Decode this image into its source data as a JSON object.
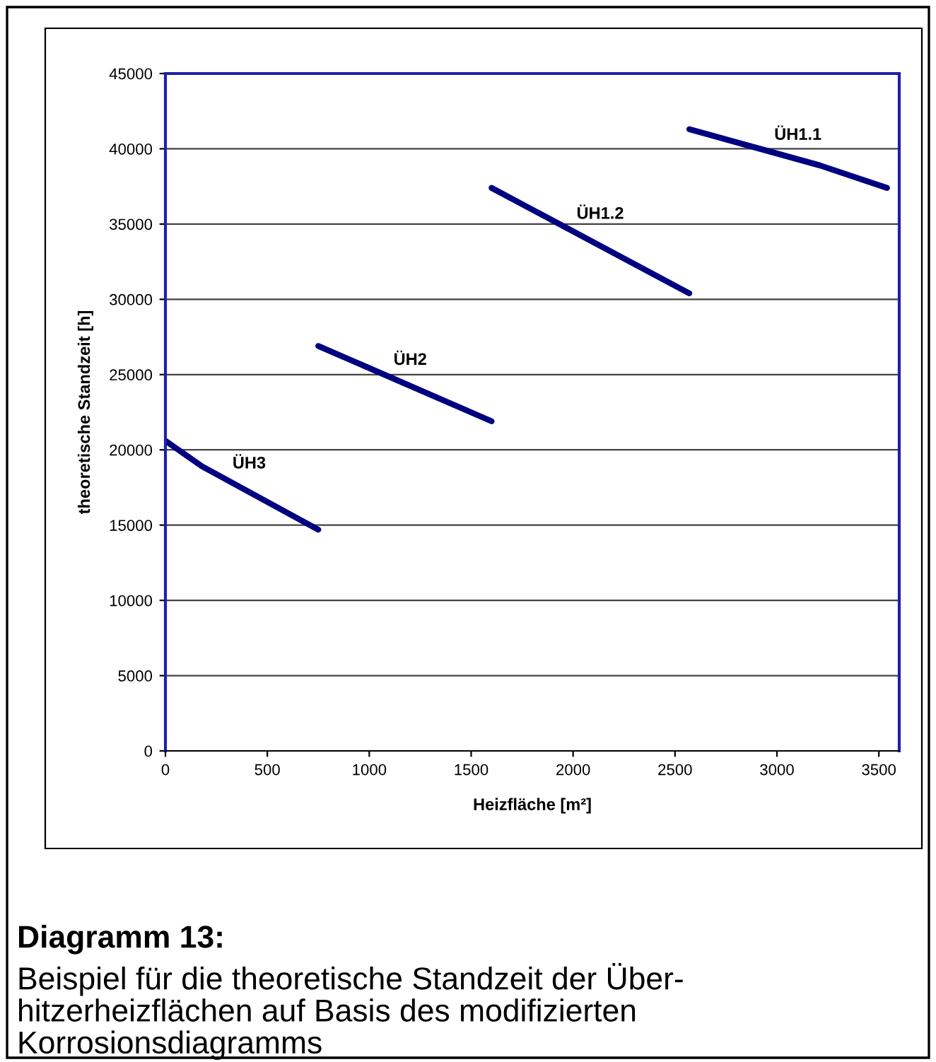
{
  "chart_data": {
    "type": "line",
    "xlabel": "Heizfläche [m²]",
    "ylabel": "theoretische Standzeit [h]",
    "xlim": [
      0,
      3600
    ],
    "xticks": [
      0,
      500,
      1000,
      1500,
      2000,
      2500,
      3000,
      3500
    ],
    "ylim": [
      0,
      45000
    ],
    "yticks": [
      0,
      5000,
      10000,
      15000,
      20000,
      25000,
      30000,
      35000,
      40000,
      45000
    ],
    "grid": "y",
    "marker": "none",
    "line_style": "solid",
    "series": [
      {
        "name": "ÜH3",
        "color": "#000080",
        "x": [
          0,
          180,
          750
        ],
        "values": [
          20600,
          18900,
          14700
        ]
      },
      {
        "name": "ÜH2",
        "color": "#000080",
        "x": [
          750,
          1600
        ],
        "values": [
          26900,
          21900
        ]
      },
      {
        "name": "ÜH1.2",
        "color": "#000080",
        "x": [
          1600,
          2570
        ],
        "values": [
          37400,
          30400
        ]
      },
      {
        "name": "ÜH1.1",
        "color": "#000080",
        "x": [
          2570,
          3210,
          3540
        ],
        "values": [
          41300,
          38900,
          37400
        ]
      }
    ],
    "annotations": [
      "Diagramm 13:",
      "Beispiel für die theoretische Standzeit der Über-\nhitzerheizflächen auf Basis des modifizierten\nKorrosionsdiagramms"
    ]
  }
}
